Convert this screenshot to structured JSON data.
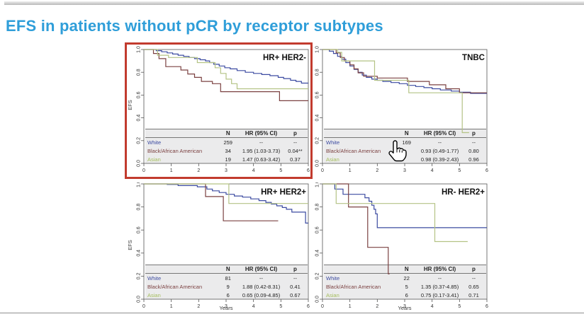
{
  "header": {
    "title": "EFS in patients without pCR by receptor subtypes",
    "title_color": "#2f9ed9"
  },
  "axis": {
    "ylabel": "EFS",
    "xlabel": "Years"
  },
  "table_headers": {
    "n": "N",
    "hr": "HR (95% CI)",
    "p": "p"
  },
  "colors": {
    "white_series": "#3c4ba1",
    "black_series": "#7b4141",
    "asian_series": "#b4c385",
    "highlight": "#c23b2e"
  },
  "chart_data": [
    {
      "type": "line",
      "title": "HR+ HER2-",
      "ylabel": "EFS",
      "xlabel": "",
      "xlim": [
        0,
        6
      ],
      "ylim": [
        0,
        1
      ],
      "x_ticks": [
        0,
        1,
        2,
        3,
        4,
        5,
        6
      ],
      "y_ticks": [
        0.0,
        0.2,
        0.4,
        0.6,
        0.8,
        1.0
      ],
      "highlighted": true,
      "series": [
        {
          "name": "White",
          "color": "#3c4ba1",
          "end_x": 6,
          "points": [
            [
              0,
              1.0
            ],
            [
              0.45,
              0.99
            ],
            [
              0.65,
              0.98
            ],
            [
              0.85,
              0.97
            ],
            [
              1.05,
              0.96
            ],
            [
              1.25,
              0.95
            ],
            [
              1.45,
              0.94
            ],
            [
              1.65,
              0.93
            ],
            [
              1.85,
              0.92
            ],
            [
              2.05,
              0.91
            ],
            [
              2.25,
              0.9
            ],
            [
              2.4,
              0.885
            ],
            [
              2.55,
              0.87
            ],
            [
              2.75,
              0.855
            ],
            [
              2.95,
              0.84
            ],
            [
              3.15,
              0.83
            ],
            [
              3.4,
              0.815
            ],
            [
              3.7,
              0.8
            ],
            [
              4.0,
              0.79
            ],
            [
              4.3,
              0.78
            ],
            [
              4.6,
              0.77
            ],
            [
              4.9,
              0.755
            ],
            [
              5.1,
              0.745
            ],
            [
              5.35,
              0.73
            ],
            [
              5.55,
              0.72
            ],
            [
              5.75,
              0.705
            ]
          ]
        },
        {
          "name": "Black/African American",
          "color": "#7b4141",
          "end_x": 6,
          "points": [
            [
              0,
              1.0
            ],
            [
              0.35,
              0.965
            ],
            [
              0.55,
              0.92
            ],
            [
              0.8,
              0.85
            ],
            [
              1.35,
              0.82
            ],
            [
              1.6,
              0.785
            ],
            [
              1.85,
              0.755
            ],
            [
              2.1,
              0.72
            ],
            [
              2.5,
              0.7
            ],
            [
              2.8,
              0.63
            ],
            [
              4.95,
              0.55
            ]
          ]
        },
        {
          "name": "Asian",
          "color": "#b4c385",
          "end_x": 6,
          "points": [
            [
              0,
              1.0
            ],
            [
              0.5,
              0.95
            ],
            [
              0.9,
              0.93
            ],
            [
              1.95,
              0.885
            ],
            [
              2.6,
              0.84
            ],
            [
              2.8,
              0.79
            ],
            [
              3.0,
              0.74
            ],
            [
              3.2,
              0.7
            ],
            [
              3.4,
              0.655
            ]
          ]
        }
      ],
      "table": {
        "rows": [
          {
            "label": "White",
            "n": "259",
            "hr": "--",
            "p": "--"
          },
          {
            "label": "Black/African American",
            "n": "34",
            "hr": "1.95 (1.03-3.73)",
            "p": "0.04**"
          },
          {
            "label": "Asian",
            "n": "19",
            "hr": "1.47 (0.63-3.42)",
            "p": "0.37"
          }
        ]
      }
    },
    {
      "type": "line",
      "title": "TNBC",
      "ylabel": "EFS",
      "xlabel": "",
      "xlim": [
        0,
        6
      ],
      "ylim": [
        0,
        1
      ],
      "x_ticks": [
        0,
        1,
        2,
        3,
        4,
        5,
        6
      ],
      "y_ticks": [
        0.0,
        0.2,
        0.4,
        0.6,
        0.8,
        1.0
      ],
      "highlighted": false,
      "series": [
        {
          "name": "White",
          "color": "#3c4ba1",
          "end_x": 6,
          "points": [
            [
              0,
              1.0
            ],
            [
              0.25,
              0.985
            ],
            [
              0.4,
              0.965
            ],
            [
              0.55,
              0.94
            ],
            [
              0.7,
              0.915
            ],
            [
              0.85,
              0.885
            ],
            [
              1.0,
              0.855
            ],
            [
              1.15,
              0.825
            ],
            [
              1.3,
              0.8
            ],
            [
              1.45,
              0.775
            ],
            [
              1.6,
              0.755
            ],
            [
              1.8,
              0.74
            ],
            [
              2.0,
              0.73
            ],
            [
              2.2,
              0.72
            ],
            [
              2.5,
              0.71
            ],
            [
              2.8,
              0.7
            ],
            [
              3.1,
              0.685
            ],
            [
              3.4,
              0.675
            ],
            [
              3.7,
              0.665
            ],
            [
              4.0,
              0.655
            ],
            [
              4.3,
              0.645
            ],
            [
              4.7,
              0.635
            ],
            [
              5.0,
              0.625
            ],
            [
              5.4,
              0.615
            ]
          ]
        },
        {
          "name": "Black/African American",
          "color": "#7b4141",
          "end_x": 6,
          "points": [
            [
              0,
              1.0
            ],
            [
              0.5,
              0.97
            ],
            [
              0.65,
              0.93
            ],
            [
              0.8,
              0.9
            ],
            [
              1.0,
              0.865
            ],
            [
              1.15,
              0.83
            ],
            [
              1.3,
              0.795
            ],
            [
              1.5,
              0.765
            ],
            [
              2.0,
              0.75
            ],
            [
              3.1,
              0.72
            ],
            [
              3.9,
              0.69
            ],
            [
              4.5,
              0.655
            ],
            [
              5.0,
              0.62
            ]
          ]
        },
        {
          "name": "Asian",
          "color": "#b4c385",
          "end_x": 5.35,
          "points": [
            [
              0,
              1.0
            ],
            [
              0.55,
              0.975
            ],
            [
              0.7,
              0.9
            ],
            [
              1.9,
              0.73
            ],
            [
              3.15,
              0.62
            ],
            [
              5.1,
              0.27
            ]
          ]
        }
      ],
      "table": {
        "rows": [
          {
            "label": "White",
            "n": "169",
            "hr": "--",
            "p": "--"
          },
          {
            "label": "Black/African American",
            "n": "",
            "hr": "0.93 (0.49-1.77)",
            "p": "0.80"
          },
          {
            "label": "Asian",
            "n": "",
            "hr": "0.98 (0.39-2.43)",
            "p": "0.96"
          }
        ]
      }
    },
    {
      "type": "line",
      "title": "HR+ HER2+",
      "ylabel": "EFS",
      "xlabel": "Years",
      "xlim": [
        0,
        6
      ],
      "ylim": [
        0,
        1
      ],
      "x_ticks": [
        0,
        1,
        2,
        3,
        4,
        5,
        6
      ],
      "y_ticks": [
        0.0,
        0.2,
        0.4,
        0.6,
        0.8,
        1.0
      ],
      "highlighted": false,
      "series": [
        {
          "name": "White",
          "color": "#3c4ba1",
          "end_x": 6,
          "points": [
            [
              0,
              1.0
            ],
            [
              0.85,
              0.995
            ],
            [
              1.25,
              0.985
            ],
            [
              1.95,
              0.975
            ],
            [
              2.3,
              0.955
            ],
            [
              2.5,
              0.94
            ],
            [
              2.75,
              0.925
            ],
            [
              3.0,
              0.91
            ],
            [
              3.3,
              0.895
            ],
            [
              3.6,
              0.885
            ],
            [
              3.9,
              0.87
            ],
            [
              4.2,
              0.855
            ],
            [
              4.45,
              0.84
            ],
            [
              4.65,
              0.825
            ],
            [
              4.85,
              0.81
            ],
            [
              5.05,
              0.795
            ],
            [
              5.2,
              0.78
            ],
            [
              5.4,
              0.755
            ],
            [
              5.9,
              0.66
            ]
          ]
        },
        {
          "name": "Black/African American",
          "color": "#7b4141",
          "end_x": 4.9,
          "points": [
            [
              0,
              1.0
            ],
            [
              2.25,
              0.89
            ],
            [
              2.9,
              0.68
            ]
          ]
        },
        {
          "name": "Asian",
          "color": "#b4c385",
          "end_x": 6,
          "points": [
            [
              0,
              1.0
            ],
            [
              3.1,
              0.83
            ]
          ]
        }
      ],
      "table": {
        "rows": [
          {
            "label": "White",
            "n": "81",
            "hr": "--",
            "p": "--"
          },
          {
            "label": "Black/African American",
            "n": "9",
            "hr": "1.88 (0.42-8.31)",
            "p": "0.41"
          },
          {
            "label": "Asian",
            "n": "6",
            "hr": "0.65 (0.09-4.85)",
            "p": "0.67"
          }
        ]
      }
    },
    {
      "type": "line",
      "title": "HR- HER2+",
      "ylabel": "EFS",
      "xlabel": "Years",
      "xlim": [
        0,
        6
      ],
      "ylim": [
        0,
        1
      ],
      "x_ticks": [
        0,
        1,
        2,
        3,
        4,
        5,
        6
      ],
      "y_ticks": [
        0.0,
        0.2,
        0.4,
        0.6,
        0.8,
        1.0
      ],
      "highlighted": false,
      "series": [
        {
          "name": "White",
          "color": "#3c4ba1",
          "end_x": 6,
          "points": [
            [
              0,
              1.0
            ],
            [
              0.45,
              0.955
            ],
            [
              0.75,
              0.91
            ],
            [
              1.55,
              0.88
            ],
            [
              1.7,
              0.85
            ],
            [
              1.8,
              0.815
            ],
            [
              1.88,
              0.78
            ],
            [
              1.94,
              0.74
            ],
            [
              2.0,
              0.62
            ]
          ]
        },
        {
          "name": "Black/African American",
          "color": "#7b4141",
          "end_x": 2.45,
          "points": [
            [
              0,
              1.0
            ],
            [
              0.95,
              0.8
            ],
            [
              1.65,
              0.45
            ],
            [
              2.4,
              0.22
            ]
          ]
        },
        {
          "name": "Asian",
          "color": "#b4c385",
          "end_x": 5.3,
          "points": [
            [
              0,
              1.0
            ],
            [
              0.5,
              0.83
            ],
            [
              4.1,
              0.5
            ]
          ]
        }
      ],
      "table": {
        "rows": [
          {
            "label": "White",
            "n": "22",
            "hr": "--",
            "p": "--"
          },
          {
            "label": "Black/African American",
            "n": "5",
            "hr": "1.35 (0.37-4.85)",
            "p": "0.65"
          },
          {
            "label": "Asian",
            "n": "6",
            "hr": "0.75 (0.17-3.41)",
            "p": "0.71"
          }
        ]
      }
    }
  ]
}
